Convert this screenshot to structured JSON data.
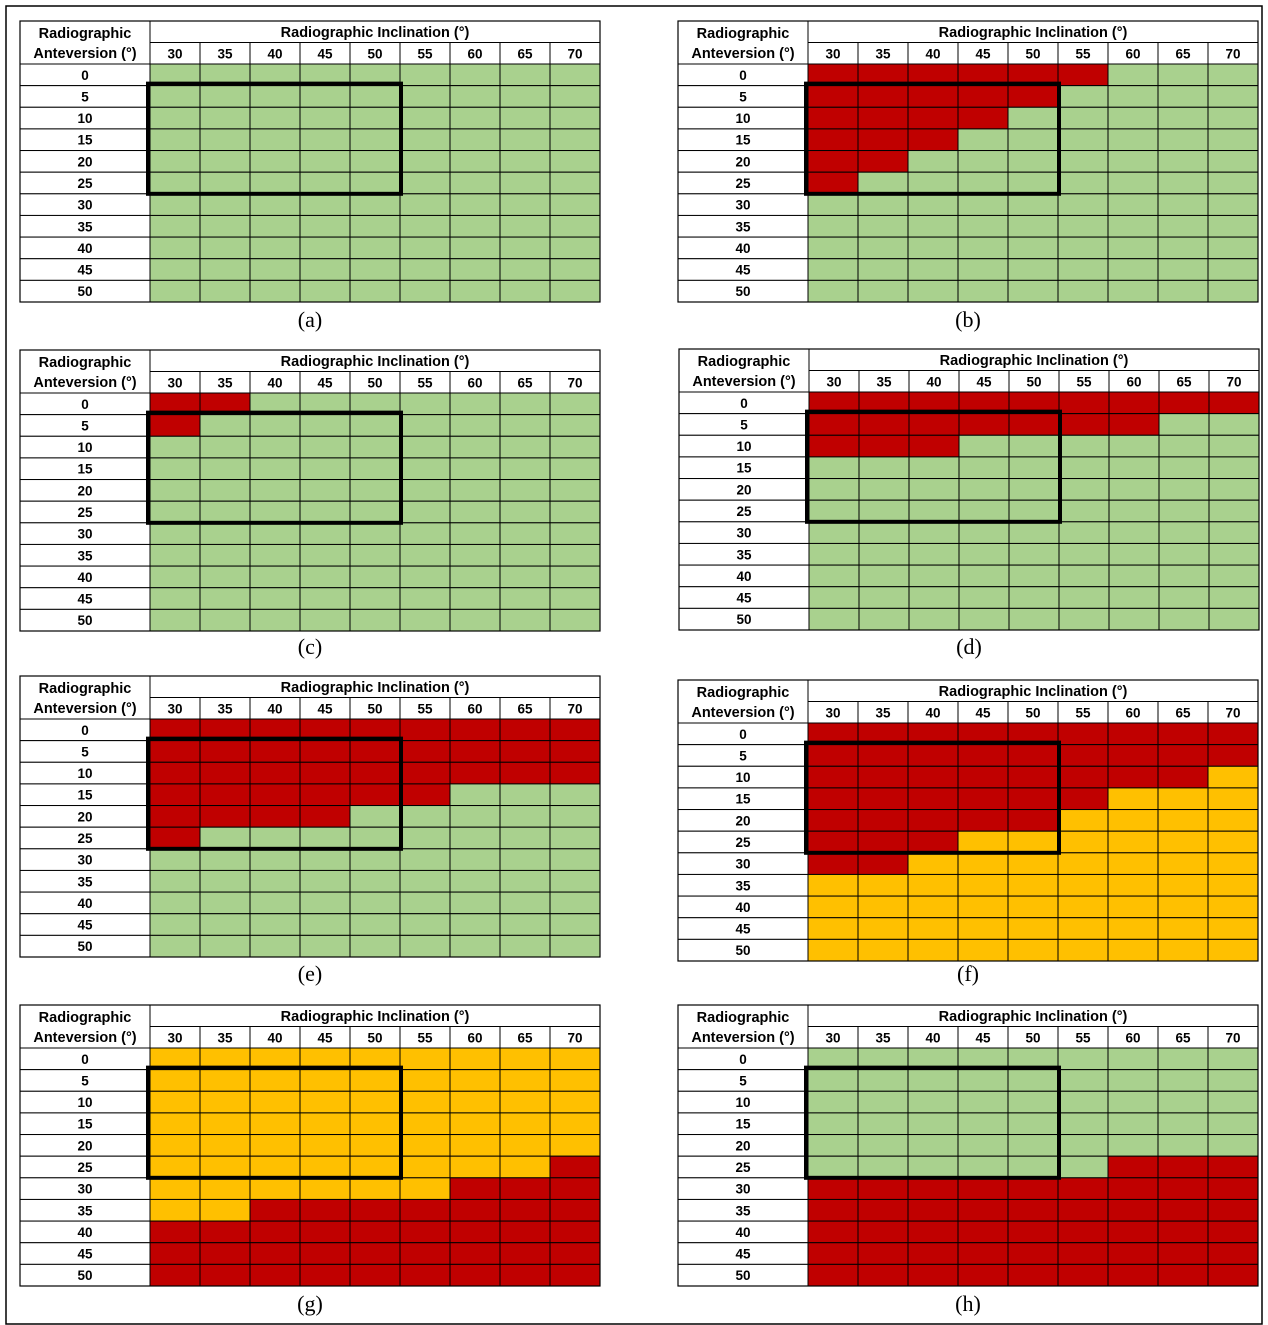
{
  "colors": {
    "G": "#a9d18e",
    "R": "#c00000",
    "Y": "#ffc000",
    "border": "#000000",
    "background": "#ffffff"
  },
  "chart_data": [
    {
      "type": "heatmap",
      "panel": "a",
      "caption": "(a)",
      "row_header": [
        "Radiographic",
        "Anteversion (°)"
      ],
      "col_header": "Radiographic Inclination (°)",
      "x": [
        "30",
        "35",
        "40",
        "45",
        "50",
        "55",
        "60",
        "65",
        "70"
      ],
      "y": [
        "0",
        "5",
        "10",
        "15",
        "20",
        "25",
        "30",
        "35",
        "40",
        "45",
        "50"
      ],
      "highlight_box": {
        "x": [
          "30",
          "50"
        ],
        "y": [
          "5",
          "25"
        ]
      },
      "cells": [
        "GGGGGGGGG",
        "GGGGGGGGG",
        "GGGGGGGGG",
        "GGGGGGGGG",
        "GGGGGGGGG",
        "GGGGGGGGG",
        "GGGGGGGGG",
        "GGGGGGGGG",
        "GGGGGGGGG",
        "GGGGGGGGG",
        "GGGGGGGGG"
      ]
    },
    {
      "type": "heatmap",
      "panel": "b",
      "caption": "(b)",
      "row_header": [
        "Radiographic",
        "Anteversion (°)"
      ],
      "col_header": "Radiographic Inclination (°)",
      "x": [
        "30",
        "35",
        "40",
        "45",
        "50",
        "55",
        "60",
        "65",
        "70"
      ],
      "y": [
        "0",
        "5",
        "10",
        "15",
        "20",
        "25",
        "30",
        "35",
        "40",
        "45",
        "50"
      ],
      "highlight_box": {
        "x": [
          "30",
          "50"
        ],
        "y": [
          "5",
          "25"
        ]
      },
      "cells": [
        "RRRRRRGGG",
        "RRRRRGGGG",
        "RRRRGGGGG",
        "RRRGGGGGG",
        "RRGGGGGGG",
        "RGGGGGGGG",
        "GGGGGGGGG",
        "GGGGGGGGG",
        "GGGGGGGGG",
        "GGGGGGGGG",
        "GGGGGGGGG"
      ]
    },
    {
      "type": "heatmap",
      "panel": "c",
      "caption": "(c)",
      "row_header": [
        "Radiographic",
        "Anteversion (°)"
      ],
      "col_header": "Radiographic Inclination (°)",
      "x": [
        "30",
        "35",
        "40",
        "45",
        "50",
        "55",
        "60",
        "65",
        "70"
      ],
      "y": [
        "0",
        "5",
        "10",
        "15",
        "20",
        "25",
        "30",
        "35",
        "40",
        "45",
        "50"
      ],
      "highlight_box": {
        "x": [
          "30",
          "50"
        ],
        "y": [
          "5",
          "25"
        ]
      },
      "cells": [
        "RRGGGGGGG",
        "RGGGGGGGG",
        "GGGGGGGGG",
        "GGGGGGGGG",
        "GGGGGGGGG",
        "GGGGGGGGG",
        "GGGGGGGGG",
        "GGGGGGGGG",
        "GGGGGGGGG",
        "GGGGGGGGG",
        "GGGGGGGGG"
      ]
    },
    {
      "type": "heatmap",
      "panel": "d",
      "caption": "(d)",
      "row_header": [
        "Radiographic",
        "Anteversion (°)"
      ],
      "col_header": "Radiographic Inclination (°)",
      "x": [
        "30",
        "35",
        "40",
        "45",
        "50",
        "55",
        "60",
        "65",
        "70"
      ],
      "y": [
        "0",
        "5",
        "10",
        "15",
        "20",
        "25",
        "30",
        "35",
        "40",
        "45",
        "50"
      ],
      "highlight_box": {
        "x": [
          "30",
          "50"
        ],
        "y": [
          "5",
          "25"
        ]
      },
      "cells": [
        "RRRRRRRRR",
        "RRRRRRRGG",
        "RRRGGGGGG",
        "GGGGGGGGG",
        "GGGGGGGGG",
        "GGGGGGGGG",
        "GGGGGGGGG",
        "GGGGGGGGG",
        "GGGGGGGGG",
        "GGGGGGGGG",
        "GGGGGGGGG"
      ]
    },
    {
      "type": "heatmap",
      "panel": "e",
      "caption": "(e)",
      "row_header": [
        "Radiographic",
        "Anteversion (°)"
      ],
      "col_header": "Radiographic Inclination (°)",
      "x": [
        "30",
        "35",
        "40",
        "45",
        "50",
        "55",
        "60",
        "65",
        "70"
      ],
      "y": [
        "0",
        "5",
        "10",
        "15",
        "20",
        "25",
        "30",
        "35",
        "40",
        "45",
        "50"
      ],
      "highlight_box": {
        "x": [
          "30",
          "50"
        ],
        "y": [
          "5",
          "25"
        ]
      },
      "cells": [
        "RRRRRRRRR",
        "RRRRRRRRR",
        "RRRRRRRRR",
        "RRRRRRGGG",
        "RRRRGGGGG",
        "RGGGGGGGG",
        "GGGGGGGGG",
        "GGGGGGGGG",
        "GGGGGGGGG",
        "GGGGGGGGG",
        "GGGGGGGGG"
      ]
    },
    {
      "type": "heatmap",
      "panel": "f",
      "caption": "(f)",
      "row_header": [
        "Radiographic",
        "Anteversion (°)"
      ],
      "col_header": "Radiographic Inclination (°)",
      "x": [
        "30",
        "35",
        "40",
        "45",
        "50",
        "55",
        "60",
        "65",
        "70"
      ],
      "y": [
        "0",
        "5",
        "10",
        "15",
        "20",
        "25",
        "30",
        "35",
        "40",
        "45",
        "50"
      ],
      "highlight_box": {
        "x": [
          "30",
          "50"
        ],
        "y": [
          "5",
          "25"
        ]
      },
      "cells": [
        "RRRRRRRRR",
        "RRRRRRRRR",
        "RRRRRRRRY",
        "RRRRRRYYY",
        "RRRRRYYYY",
        "RRRYYYYYY",
        "RRYYYYYYY",
        "YYYYYYYYY",
        "YYYYYYYYY",
        "YYYYYYYYY",
        "YYYYYYYYY"
      ]
    },
    {
      "type": "heatmap",
      "panel": "g",
      "caption": "(g)",
      "row_header": [
        "Radiographic",
        "Anteversion (°)"
      ],
      "col_header": "Radiographic Inclination (°)",
      "x": [
        "30",
        "35",
        "40",
        "45",
        "50",
        "55",
        "60",
        "65",
        "70"
      ],
      "y": [
        "0",
        "5",
        "10",
        "15",
        "20",
        "25",
        "30",
        "35",
        "40",
        "45",
        "50"
      ],
      "highlight_box": {
        "x": [
          "30",
          "50"
        ],
        "y": [
          "5",
          "25"
        ]
      },
      "cells": [
        "YYYYYYYYY",
        "YYYYYYYYY",
        "YYYYYYYYY",
        "YYYYYYYYY",
        "YYYYYYYYY",
        "YYYYYYYYR",
        "YYYYYYRRR",
        "YYRRRRRRR",
        "RRRRRRRRR",
        "RRRRRRRRR",
        "RRRRRRRRR"
      ]
    },
    {
      "type": "heatmap",
      "panel": "h",
      "caption": "(h)",
      "row_header": [
        "Radiographic",
        "Anteversion (°)"
      ],
      "col_header": "Radiographic Inclination (°)",
      "x": [
        "30",
        "35",
        "40",
        "45",
        "50",
        "55",
        "60",
        "65",
        "70"
      ],
      "y": [
        "0",
        "5",
        "10",
        "15",
        "20",
        "25",
        "30",
        "35",
        "40",
        "45",
        "50"
      ],
      "highlight_box": {
        "x": [
          "30",
          "50"
        ],
        "y": [
          "5",
          "25"
        ]
      },
      "cells": [
        "GGGGGGGGG",
        "GGGGGGGGG",
        "GGGGGGGGG",
        "GGGGGGGGG",
        "GGGGGGGGG",
        "GGGGGGRRR",
        "RRRRRRRRR",
        "RRRRRRRRR",
        "RRRRRRRRR",
        "RRRRRRRRR",
        "RRRRRRRRR"
      ]
    }
  ]
}
